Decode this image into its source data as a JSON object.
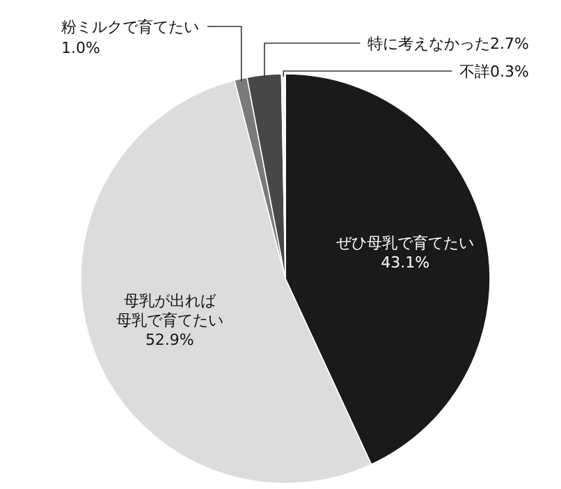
{
  "chart_data": {
    "type": "pie",
    "categories": [
      "ぜひ母乳で育てたい",
      "母乳が出れば母乳で育てたい",
      "粉ミルクで育てたい",
      "特に考えなかった",
      "不詳"
    ],
    "values": [
      43.1,
      52.9,
      1.0,
      2.7,
      0.3
    ],
    "value_labels": [
      "43.1%",
      "52.9%",
      "1.0%",
      "2.7%",
      "0.3%"
    ],
    "colors": [
      "#1a1a1a",
      "#dcdcdc",
      "#7a7a7a",
      "#474747",
      "#f4f4f4"
    ]
  }
}
